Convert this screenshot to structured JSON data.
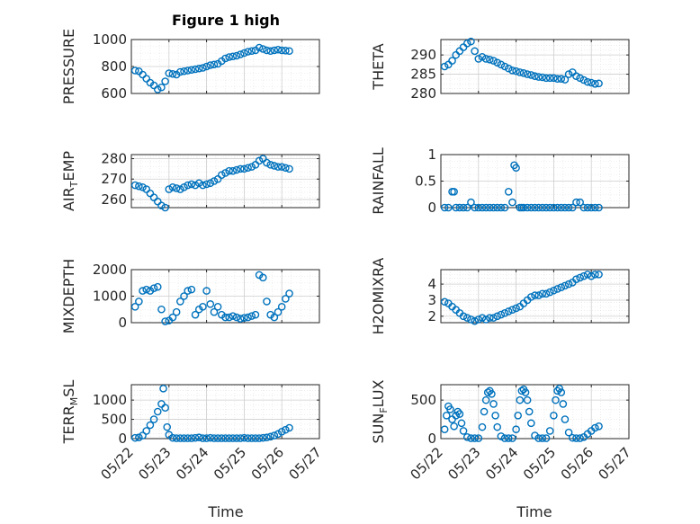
{
  "figure_title": "Figure 1 high",
  "colors": {
    "marker": "#0072BD",
    "axis": "#262626",
    "grid": "#cfcfcf"
  },
  "chart_data": [
    {
      "type": "scatter",
      "ylabel": {
        "main": "PRESSURE"
      },
      "ylim": [
        600,
        1000
      ],
      "yticks": [
        "600",
        "800",
        "1000"
      ],
      "ytick_values": [
        600,
        800,
        1000
      ],
      "xlim": [
        "05/22",
        "05/27"
      ],
      "xticks": [
        "05/22",
        "05/23",
        "05/24",
        "05/25",
        "05/26",
        "05/27"
      ],
      "grid": true,
      "x": [
        22.1,
        22.2,
        22.3,
        22.4,
        22.5,
        22.6,
        22.7,
        22.8,
        22.9,
        23.0,
        23.1,
        23.2,
        23.3,
        23.4,
        23.5,
        23.6,
        23.7,
        23.8,
        23.9,
        24.0,
        24.1,
        24.2,
        24.3,
        24.4,
        24.5,
        24.6,
        24.7,
        24.8,
        24.9,
        25.0,
        25.1,
        25.2,
        25.3,
        25.4,
        25.5,
        25.6,
        25.7,
        25.8,
        25.9,
        26.0,
        26.1,
        26.2
      ],
      "y": [
        770,
        765,
        740,
        710,
        680,
        660,
        630,
        645,
        690,
        750,
        745,
        740,
        760,
        765,
        770,
        775,
        780,
        785,
        790,
        800,
        810,
        815,
        820,
        840,
        860,
        870,
        875,
        880,
        890,
        900,
        910,
        915,
        920,
        940,
        930,
        920,
        915,
        920,
        925,
        920,
        918,
        915
      ]
    },
    {
      "type": "scatter",
      "ylabel": {
        "main": "THETA"
      },
      "ylim": [
        280,
        294
      ],
      "yticks": [
        "280",
        "285",
        "290"
      ],
      "ytick_values": [
        280,
        285,
        290
      ],
      "xlim": [
        "05/22",
        "05/27"
      ],
      "xticks": [
        "05/22",
        "05/23",
        "05/24",
        "05/25",
        "05/26",
        "05/27"
      ],
      "grid": true,
      "x": [
        22.1,
        22.2,
        22.3,
        22.4,
        22.5,
        22.6,
        22.7,
        22.8,
        22.9,
        23.0,
        23.1,
        23.2,
        23.3,
        23.4,
        23.5,
        23.6,
        23.7,
        23.8,
        23.9,
        24.0,
        24.1,
        24.2,
        24.3,
        24.4,
        24.5,
        24.6,
        24.7,
        24.8,
        24.9,
        25.0,
        25.1,
        25.2,
        25.3,
        25.4,
        25.5,
        25.6,
        25.7,
        25.8,
        25.9,
        26.0,
        26.1,
        26.2
      ],
      "y": [
        287,
        287.5,
        288.5,
        290,
        291,
        292,
        293,
        293.5,
        291,
        289,
        289.5,
        289,
        288.8,
        288.5,
        288,
        287.5,
        287,
        286.5,
        286,
        285.8,
        285.5,
        285.3,
        285,
        284.8,
        284.5,
        284.3,
        284.2,
        284,
        284,
        284,
        283.8,
        283.8,
        283.6,
        285,
        285.5,
        284.5,
        284,
        283.5,
        283,
        282.8,
        282.5,
        282.6
      ]
    },
    {
      "type": "scatter",
      "ylabel": {
        "main": "AIR",
        "sub": "T",
        "tail": "EMP"
      },
      "ylim": [
        256,
        282
      ],
      "yticks": [
        "260",
        "270",
        "280"
      ],
      "ytick_values": [
        260,
        270,
        280
      ],
      "xlim": [
        "05/22",
        "05/27"
      ],
      "xticks": [
        "05/22",
        "05/23",
        "05/24",
        "05/25",
        "05/26",
        "05/27"
      ],
      "grid": true,
      "x": [
        22.1,
        22.2,
        22.3,
        22.4,
        22.5,
        22.6,
        22.7,
        22.8,
        22.9,
        23.0,
        23.1,
        23.2,
        23.3,
        23.4,
        23.5,
        23.6,
        23.7,
        23.8,
        23.9,
        24.0,
        24.1,
        24.2,
        24.3,
        24.4,
        24.5,
        24.6,
        24.7,
        24.8,
        24.9,
        25.0,
        25.1,
        25.2,
        25.3,
        25.4,
        25.5,
        25.6,
        25.7,
        25.8,
        25.9,
        26.0,
        26.1,
        26.2
      ],
      "y": [
        267,
        266.5,
        266,
        265,
        263,
        261,
        259,
        257,
        256,
        265,
        266,
        265.5,
        265,
        266,
        267,
        267.5,
        267,
        268,
        267,
        267.5,
        268,
        269,
        270,
        272,
        273,
        274,
        274,
        274.5,
        275,
        275,
        275.5,
        276,
        277,
        279,
        280,
        278,
        277,
        276.5,
        276,
        276,
        275.5,
        275
      ]
    },
    {
      "type": "scatter",
      "ylabel": {
        "main": "RAINFALL"
      },
      "ylim": [
        0,
        1
      ],
      "yticks": [
        "0",
        "0.5",
        "1"
      ],
      "ytick_values": [
        0,
        0.5,
        1
      ],
      "xlim": [
        "05/22",
        "05/27"
      ],
      "xticks": [
        "05/22",
        "05/23",
        "05/24",
        "05/25",
        "05/26",
        "05/27"
      ],
      "grid": true,
      "x": [
        22.1,
        22.2,
        22.3,
        22.35,
        22.4,
        22.5,
        22.6,
        22.7,
        22.8,
        22.9,
        23.0,
        23.1,
        23.2,
        23.3,
        23.4,
        23.5,
        23.6,
        23.7,
        23.8,
        23.9,
        23.95,
        24.0,
        24.1,
        24.15,
        24.2,
        24.3,
        24.4,
        24.5,
        24.6,
        24.7,
        24.8,
        24.9,
        25.0,
        25.1,
        25.2,
        25.3,
        25.4,
        25.5,
        25.6,
        25.7,
        25.8,
        25.9,
        26.0,
        26.1,
        26.2
      ],
      "y": [
        0,
        0,
        0.3,
        0.3,
        0,
        0,
        0,
        0,
        0.1,
        0,
        0,
        0,
        0,
        0,
        0,
        0,
        0,
        0,
        0.3,
        0.1,
        0.8,
        0.75,
        0,
        0,
        0,
        0,
        0,
        0,
        0,
        0,
        0,
        0,
        0,
        0,
        0,
        0,
        0,
        0,
        0.1,
        0.1,
        0,
        0,
        0,
        0,
        0
      ]
    },
    {
      "type": "scatter",
      "ylabel": {
        "main": "MIXDEPTH"
      },
      "ylim": [
        0,
        2000
      ],
      "yticks": [
        "0",
        "1000",
        "2000"
      ],
      "ytick_values": [
        0,
        1000,
        2000
      ],
      "xlim": [
        "05/22",
        "05/27"
      ],
      "xticks": [
        "05/22",
        "05/23",
        "05/24",
        "05/25",
        "05/26",
        "05/27"
      ],
      "grid": true,
      "x": [
        22.1,
        22.2,
        22.3,
        22.4,
        22.5,
        22.6,
        22.7,
        22.8,
        22.9,
        23.0,
        23.1,
        23.2,
        23.3,
        23.4,
        23.5,
        23.6,
        23.7,
        23.8,
        23.9,
        24.0,
        24.1,
        24.2,
        24.3,
        24.4,
        24.5,
        24.6,
        24.7,
        24.8,
        24.9,
        25.0,
        25.1,
        25.2,
        25.3,
        25.4,
        25.5,
        25.6,
        25.7,
        25.8,
        25.9,
        26.0,
        26.1,
        26.2
      ],
      "y": [
        600,
        800,
        1200,
        1250,
        1200,
        1300,
        1350,
        500,
        50,
        80,
        200,
        400,
        800,
        1000,
        1200,
        1250,
        300,
        500,
        600,
        1200,
        700,
        400,
        600,
        300,
        200,
        200,
        250,
        200,
        150,
        180,
        200,
        250,
        300,
        1800,
        1700,
        800,
        300,
        200,
        400,
        600,
        900,
        1100
      ]
    },
    {
      "type": "scatter",
      "ylabel": {
        "main": "H2OMIXRA"
      },
      "ylim": [
        1.6,
        4.9
      ],
      "yticks": [
        "2",
        "3",
        "4"
      ],
      "ytick_values": [
        2,
        3,
        4
      ],
      "xlim": [
        "05/22",
        "05/27"
      ],
      "xticks": [
        "05/22",
        "05/23",
        "05/24",
        "05/25",
        "05/26",
        "05/27"
      ],
      "grid": true,
      "x": [
        22.1,
        22.2,
        22.3,
        22.4,
        22.5,
        22.6,
        22.7,
        22.8,
        22.9,
        23.0,
        23.1,
        23.2,
        23.3,
        23.4,
        23.5,
        23.6,
        23.7,
        23.8,
        23.9,
        24.0,
        24.1,
        24.2,
        24.3,
        24.4,
        24.5,
        24.6,
        24.7,
        24.8,
        24.9,
        25.0,
        25.1,
        25.2,
        25.3,
        25.4,
        25.5,
        25.6,
        25.7,
        25.8,
        25.9,
        26.0,
        26.1,
        26.2
      ],
      "y": [
        2.9,
        2.8,
        2.6,
        2.4,
        2.2,
        2.0,
        1.9,
        1.8,
        1.7,
        1.8,
        1.9,
        1.8,
        1.9,
        1.9,
        2.0,
        2.1,
        2.2,
        2.3,
        2.4,
        2.5,
        2.6,
        2.8,
        3.0,
        3.2,
        3.3,
        3.3,
        3.4,
        3.4,
        3.5,
        3.6,
        3.7,
        3.8,
        3.9,
        4.0,
        4.1,
        4.3,
        4.4,
        4.5,
        4.6,
        4.5,
        4.6,
        4.6
      ]
    },
    {
      "type": "scatter",
      "ylabel": {
        "main": "TERR",
        "sub": "M",
        "tail": "SL"
      },
      "ylim": [
        0,
        1400
      ],
      "yticks": [
        "0",
        "500",
        "1000"
      ],
      "ytick_values": [
        0,
        500,
        1000
      ],
      "xlim": [
        "05/22",
        "05/27"
      ],
      "xticks": [
        "05/22",
        "05/23",
        "05/24",
        "05/25",
        "05/26",
        "05/27"
      ],
      "grid": true,
      "x": [
        22.1,
        22.2,
        22.3,
        22.4,
        22.5,
        22.6,
        22.7,
        22.8,
        22.85,
        22.9,
        22.95,
        23.0,
        23.1,
        23.2,
        23.3,
        23.4,
        23.5,
        23.6,
        23.7,
        23.8,
        23.9,
        24.0,
        24.1,
        24.2,
        24.3,
        24.4,
        24.5,
        24.6,
        24.7,
        24.8,
        24.9,
        25.0,
        25.1,
        25.2,
        25.3,
        25.4,
        25.5,
        25.6,
        25.7,
        25.8,
        25.9,
        26.0,
        26.1,
        26.2
      ],
      "y": [
        20,
        30,
        80,
        200,
        350,
        500,
        700,
        900,
        1300,
        800,
        300,
        100,
        20,
        10,
        10,
        10,
        10,
        10,
        20,
        30,
        10,
        10,
        20,
        10,
        10,
        10,
        10,
        10,
        10,
        10,
        10,
        20,
        10,
        10,
        10,
        10,
        20,
        30,
        50,
        80,
        120,
        180,
        230,
        280
      ]
    },
    {
      "type": "scatter",
      "ylabel": {
        "main": "SUN",
        "sub": "F",
        "tail": "LUX"
      },
      "ylim": [
        0,
        700
      ],
      "yticks": [
        "0",
        "500"
      ],
      "ytick_values": [
        0,
        500
      ],
      "xlim": [
        "05/22",
        "05/27"
      ],
      "xticks": [
        "05/22",
        "05/23",
        "05/24",
        "05/25",
        "05/26",
        "05/27"
      ],
      "grid": true,
      "x": [
        22.1,
        22.15,
        22.2,
        22.25,
        22.3,
        22.35,
        22.4,
        22.45,
        22.5,
        22.55,
        22.6,
        22.7,
        22.8,
        22.9,
        23.0,
        23.1,
        23.15,
        23.2,
        23.25,
        23.3,
        23.35,
        23.4,
        23.45,
        23.5,
        23.6,
        23.7,
        23.8,
        23.9,
        24.0,
        24.05,
        24.1,
        24.15,
        24.2,
        24.25,
        24.3,
        24.35,
        24.4,
        24.5,
        24.6,
        24.7,
        24.8,
        24.9,
        25.0,
        25.05,
        25.1,
        25.15,
        25.2,
        25.25,
        25.3,
        25.4,
        25.5,
        25.6,
        25.7,
        25.8,
        25.9,
        26.0,
        26.1,
        26.2
      ],
      "y": [
        120,
        300,
        420,
        380,
        250,
        160,
        300,
        350,
        320,
        200,
        100,
        20,
        5,
        5,
        5,
        150,
        350,
        500,
        600,
        620,
        580,
        450,
        300,
        150,
        30,
        5,
        5,
        5,
        120,
        300,
        500,
        620,
        640,
        600,
        500,
        350,
        200,
        40,
        5,
        5,
        5,
        100,
        300,
        500,
        620,
        650,
        600,
        450,
        250,
        80,
        10,
        5,
        5,
        20,
        60,
        100,
        140,
        160
      ]
    }
  ],
  "xlabel": "Time"
}
